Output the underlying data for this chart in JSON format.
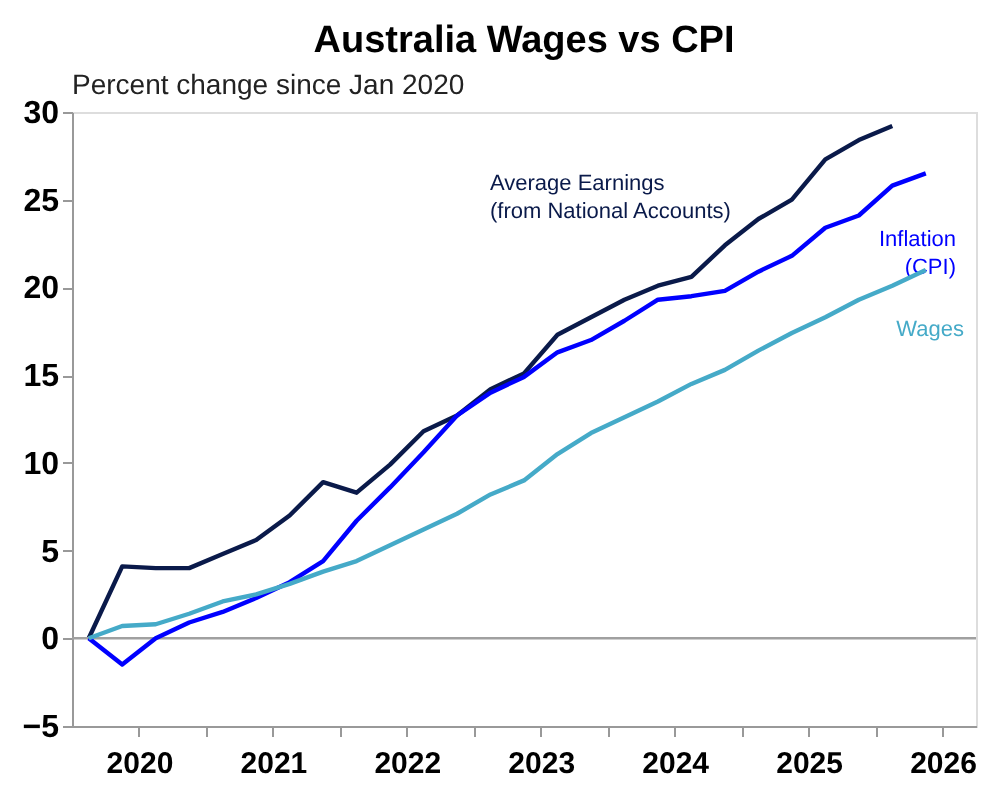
{
  "chart_data": {
    "type": "line",
    "title": "Australia Wages vs CPI",
    "subtitle": "Percent change since Jan 2020",
    "x": [
      2020.125,
      2020.375,
      2020.625,
      2020.875,
      2021.125,
      2021.375,
      2021.625,
      2021.875,
      2022.125,
      2022.375,
      2022.625,
      2022.875,
      2023.125,
      2023.375,
      2023.625,
      2023.875,
      2024.125,
      2024.375,
      2024.625,
      2024.875,
      2025.125,
      2025.375,
      2025.625,
      2025.875,
      2026.125,
      2026.375
    ],
    "series": [
      {
        "name": "Average Earnings\n(from National Accounts)",
        "color": "#0a1a4a",
        "values": [
          0,
          4.1,
          4.0,
          4.0,
          4.8,
          5.6,
          7.0,
          8.9,
          8.3,
          9.9,
          11.8,
          12.7,
          14.2,
          15.1,
          17.3,
          18.3,
          19.3,
          20.1,
          20.6,
          22.4,
          23.9,
          25.0,
          27.3,
          28.4,
          29.2,
          null
        ]
      },
      {
        "name": "Inflation\n(CPI)",
        "color": "#0000ff",
        "values": [
          0,
          -1.5,
          0,
          0.9,
          1.5,
          2.3,
          3.2,
          4.4,
          6.7,
          8.6,
          10.6,
          12.7,
          14.0,
          14.9,
          16.3,
          17.0,
          18.1,
          19.3,
          19.5,
          19.8,
          20.9,
          21.8,
          23.4,
          24.1,
          25.8,
          26.5
        ]
      },
      {
        "name": "Wages",
        "color": "#45aac8",
        "values": [
          0,
          0.7,
          0.8,
          1.4,
          2.1,
          2.5,
          3.1,
          3.8,
          4.4,
          5.3,
          6.2,
          7.1,
          8.2,
          9.0,
          10.5,
          11.7,
          12.6,
          13.5,
          14.5,
          15.3,
          16.4,
          17.4,
          18.3,
          19.3,
          20.1,
          21.0
        ]
      }
    ],
    "xlim": [
      2020,
      2026.75
    ],
    "xticks": [
      {
        "value": 2020.5,
        "label": "2020"
      },
      {
        "value": 2021,
        "label": null
      },
      {
        "value": 2021.5,
        "label": "2021"
      },
      {
        "value": 2022,
        "label": null
      },
      {
        "value": 2022.5,
        "label": "2022"
      },
      {
        "value": 2023,
        "label": null
      },
      {
        "value": 2023.5,
        "label": "2023"
      },
      {
        "value": 2024,
        "label": null
      },
      {
        "value": 2024.5,
        "label": "2024"
      },
      {
        "value": 2025,
        "label": null
      },
      {
        "value": 2025.5,
        "label": "2025"
      },
      {
        "value": 2026,
        "label": null
      },
      {
        "value": 2026.5,
        "label": "2026"
      }
    ],
    "ylim": [
      -5,
      30
    ],
    "yticks": [
      -5,
      0,
      5,
      10,
      15,
      20,
      25,
      30
    ],
    "ref_lines": [
      {
        "axis": "y",
        "value": 0,
        "color": "#a0a0a0"
      }
    ],
    "grid": false,
    "legend": false,
    "marker": "none",
    "line_style": "solid"
  }
}
